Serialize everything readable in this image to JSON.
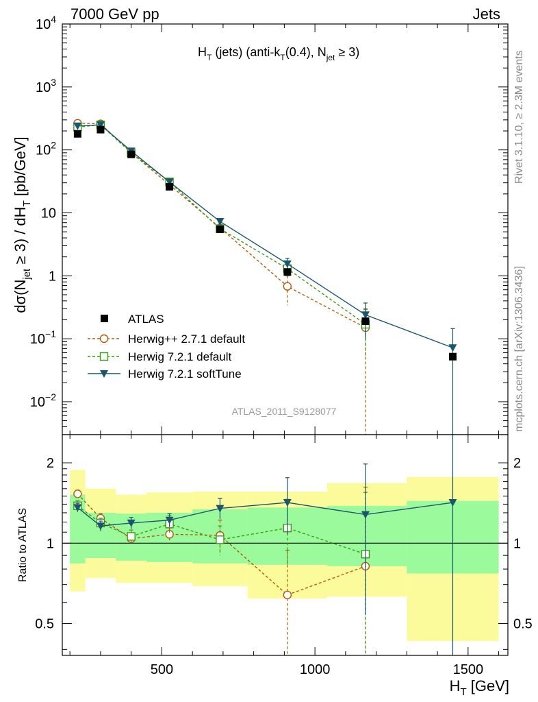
{
  "header": {
    "left": "7000 GeV pp",
    "right": "Jets"
  },
  "side_labels": {
    "rivet": "Rivet 3.1.10, ≥ 2.3M events",
    "mcplots": "mcplots.cern.ch [arXiv:1306.3436]"
  },
  "chart_data": [
    {
      "type": "scatter",
      "panel": "main",
      "title": {
        "H": "H",
        "T": "T",
        "mid1": " (jets) (anti-k",
        "T2": "T",
        "mid2": "(0.4), N",
        "jet": "jet",
        "end": " ≥ 3)"
      },
      "ylabel": {
        "a": "dσ(N",
        "b": "jet",
        "c": " ≥ 3) / dH",
        "d": "T",
        "e": " [pb/GeV]"
      },
      "analysis_label": "ATLAS_2011_S9128077",
      "y_scale": "log",
      "xlim": [
        175,
        1630
      ],
      "ylim": [
        0.003,
        10000
      ],
      "y_ticks": [
        {
          "v": 0.01,
          "base": "10",
          "exp": "−2"
        },
        {
          "v": 0.1,
          "base": "10",
          "exp": "−1"
        },
        {
          "v": 1,
          "base": "1",
          "exp": ""
        },
        {
          "v": 10,
          "base": "10",
          "exp": ""
        },
        {
          "v": 100,
          "base": "10",
          "exp": "2"
        },
        {
          "v": 1000,
          "base": "10",
          "exp": "3"
        },
        {
          "v": 10000,
          "base": "10",
          "exp": "4"
        }
      ],
      "legend": {
        "position": "lower-left"
      },
      "series": [
        {
          "name": "ATLAS",
          "color": "#000000",
          "style": "data",
          "marker": "square-filled",
          "x": [
            225,
            300,
            400,
            525,
            690,
            910,
            1165,
            1450
          ],
          "y": [
            180,
            210,
            85,
            26,
            5.5,
            1.15,
            0.19,
            0.052
          ],
          "xerr": [
            [
              200,
              250
            ],
            [
              250,
              350
            ],
            [
              350,
              450
            ],
            [
              450,
              600
            ],
            [
              600,
              780
            ],
            [
              780,
              1040
            ],
            [
              1040,
              1300
            ],
            [
              1300,
              1600
            ]
          ]
        },
        {
          "name": "Herwig++ 2.7.1 default",
          "color": "#b15a0c",
          "style": "dashed",
          "marker": "circle-open",
          "x": [
            225,
            300,
            400,
            525,
            690,
            910,
            1165
          ],
          "y": [
            265,
            260,
            90,
            28,
            5.8,
            0.68,
            0.15
          ],
          "yerr_lo": [
            250,
            245,
            84,
            26,
            5.2,
            0.34,
            0.0001
          ],
          "yerr_hi": [
            280,
            275,
            96,
            30,
            6.3,
            1.0,
            0.3
          ]
        },
        {
          "name": "Herwig 7.2.1 default",
          "color": "#3b9a12",
          "style": "dashed",
          "marker": "square-open",
          "x": [
            225,
            300,
            400,
            525,
            690,
            910,
            1165
          ],
          "y": [
            230,
            250,
            90,
            31,
            5.6,
            1.3,
            0.17
          ],
          "yerr_lo": [
            215,
            238,
            84,
            28,
            4.9,
            0.95,
            0.05
          ],
          "yerr_hi": [
            245,
            262,
            97,
            34,
            6.3,
            1.7,
            0.29
          ]
        },
        {
          "name": "Herwig 7.2.1 softTune",
          "color": "#1a566e",
          "style": "solid",
          "marker": "triangle-down-filled",
          "x": [
            225,
            300,
            400,
            525,
            690,
            910,
            1165,
            1450
          ],
          "y": [
            240,
            250,
            96,
            31,
            7.3,
            1.55,
            0.24,
            0.072
          ],
          "yerr_lo": [
            225,
            238,
            90,
            28,
            6.7,
            1.2,
            0.1,
            0.0001
          ],
          "yerr_hi": [
            255,
            262,
            102,
            34,
            7.9,
            1.9,
            0.37,
            0.145
          ]
        }
      ]
    },
    {
      "type": "scatter",
      "panel": "ratio",
      "ylabel": "Ratio to ATLAS",
      "y_scale": "log",
      "xlim": [
        175,
        1630
      ],
      "ylim": [
        0.38,
        2.55
      ],
      "x_ticks": [
        500,
        1000,
        1500
      ],
      "x_tick_labels": [
        "500",
        "1000",
        "1500"
      ],
      "y_ticks": [
        0.5,
        1,
        2
      ],
      "y_tick_labels": [
        "0.5",
        "1",
        "2"
      ],
      "xlabel": {
        "H": "H",
        "T": "T",
        "unit": " [GeV]"
      },
      "bands": {
        "bins": [
          [
            200,
            250
          ],
          [
            250,
            350
          ],
          [
            350,
            450
          ],
          [
            450,
            600
          ],
          [
            600,
            780
          ],
          [
            780,
            1040
          ],
          [
            1040,
            1300
          ],
          [
            1300,
            1600
          ]
        ],
        "inner_lo": [
          0.84,
          0.88,
          0.86,
          0.85,
          0.84,
          0.83,
          0.82,
          0.77
        ],
        "inner_hi": [
          1.52,
          1.3,
          1.29,
          1.3,
          1.34,
          1.36,
          1.38,
          1.44
        ],
        "outer_lo": [
          0.66,
          0.74,
          0.71,
          0.71,
          0.69,
          0.62,
          0.63,
          0.43
        ],
        "outer_hi": [
          1.88,
          1.6,
          1.52,
          1.55,
          1.56,
          1.56,
          1.68,
          1.77
        ],
        "inner_color": "#9bfa9b",
        "outer_color": "#fbfb9b"
      },
      "series": [
        {
          "name": "Herwig++ 2.7.1 default",
          "color": "#b15a0c",
          "style": "dashed",
          "marker": "circle-open",
          "x": [
            225,
            300,
            400,
            525,
            690,
            910,
            1165
          ],
          "y": [
            1.53,
            1.24,
            1.04,
            1.08,
            1.07,
            0.64,
            0.82
          ],
          "yerr_lo": [
            1.48,
            1.19,
            1.0,
            1.02,
            0.93,
            0.3,
            0.01
          ],
          "yerr_hi": [
            1.58,
            1.29,
            1.09,
            1.14,
            1.22,
            0.94,
            1.62
          ]
        },
        {
          "name": "Herwig 7.2.1 default",
          "color": "#3b9a12",
          "style": "dashed",
          "marker": "square-open",
          "x": [
            225,
            300,
            400,
            525,
            690,
            910,
            1165
          ],
          "y": [
            1.38,
            1.19,
            1.06,
            1.18,
            1.03,
            1.14,
            0.91
          ],
          "yerr_lo": [
            1.32,
            1.14,
            1.0,
            1.09,
            0.9,
            0.82,
            0.28
          ],
          "yerr_hi": [
            1.44,
            1.24,
            1.12,
            1.27,
            1.16,
            1.46,
            1.55
          ]
        },
        {
          "name": "Herwig 7.2.1 softTune",
          "color": "#1a566e",
          "style": "solid",
          "marker": "triangle-down-filled",
          "x": [
            225,
            300,
            400,
            525,
            690,
            910,
            1165,
            1450
          ],
          "y": [
            1.36,
            1.16,
            1.19,
            1.22,
            1.35,
            1.42,
            1.28,
            1.42
          ],
          "yerr_lo": [
            1.31,
            1.11,
            1.13,
            1.15,
            1.23,
            1.08,
            0.54,
            0.01
          ],
          "yerr_hi": [
            1.41,
            1.21,
            1.25,
            1.29,
            1.47,
            1.76,
            1.98,
            2.8
          ]
        }
      ]
    }
  ]
}
